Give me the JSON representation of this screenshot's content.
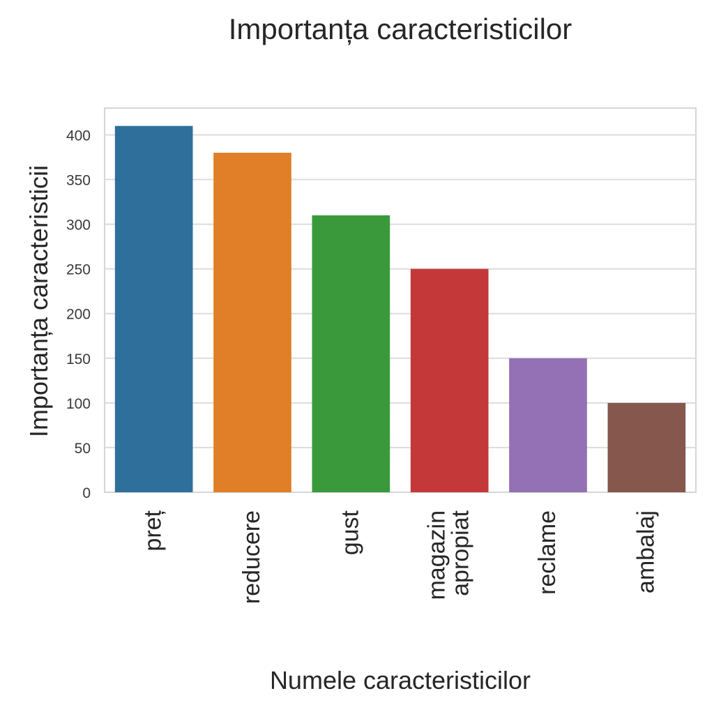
{
  "chart_data": {
    "type": "bar",
    "title": "Importanța caracteristicilor",
    "xlabel": "Numele caracteristicilor",
    "ylabel": "Importanța caracteristicii",
    "categories": [
      [
        "preț"
      ],
      [
        "reducere"
      ],
      [
        "gust"
      ],
      [
        "magazin",
        "apropiat"
      ],
      [
        "reclame"
      ],
      [
        "ambalaj"
      ]
    ],
    "values": [
      410,
      380,
      310,
      250,
      150,
      100
    ],
    "colors": [
      "#2f6f9c",
      "#e07f28",
      "#3a9a3b",
      "#c4383a",
      "#9470b4",
      "#85574d"
    ],
    "ylim": [
      0,
      430
    ],
    "yticks": [
      0,
      50,
      100,
      150,
      200,
      250,
      300,
      350,
      400
    ],
    "grid": true,
    "legend": "none"
  }
}
